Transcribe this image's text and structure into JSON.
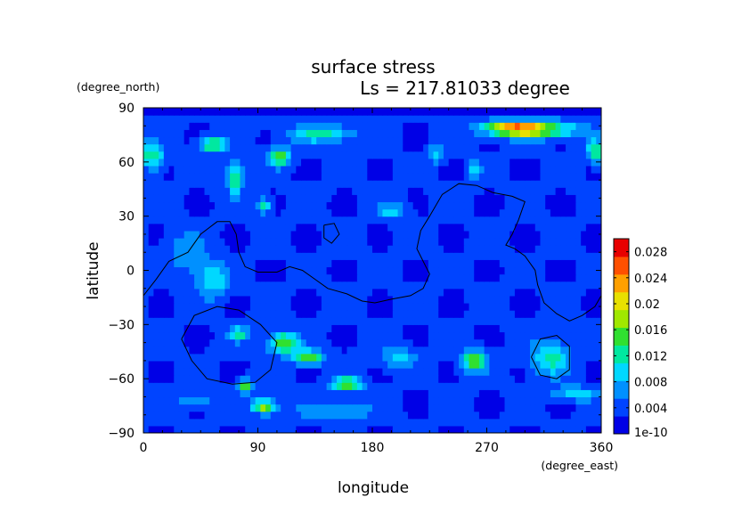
{
  "chart_data": {
    "type": "heatmap",
    "title": "surface stress",
    "subtitle": "Ls = 217.81033 degree",
    "xlabel": "longitude",
    "ylabel": "latitude",
    "x_units": "(degree_east)",
    "y_units": "(degree_north)",
    "xlim": [
      0,
      360
    ],
    "ylim": [
      -90,
      90
    ],
    "x_ticks": [
      "0",
      "90",
      "180",
      "270",
      "360"
    ],
    "y_ticks": [
      "90",
      "60",
      "30",
      "0",
      "−30",
      "−60",
      "−90"
    ],
    "colorbar": {
      "min": 0,
      "max": 0.03,
      "min_label": "1e-10",
      "tick_values": [
        0.004,
        0.008,
        0.012,
        0.016,
        0.02,
        0.024,
        0.028
      ],
      "tick_labels": [
        "0.004",
        "0.008",
        "0.012",
        "0.016",
        "0.02",
        "0.024",
        "0.028"
      ],
      "colors": [
        "#0000e6",
        "#0044ff",
        "#0090ff",
        "#00d8ff",
        "#00e8a0",
        "#30e030",
        "#a0e800",
        "#e8e000",
        "#ffa000",
        "#ff5000",
        "#e80000"
      ]
    },
    "field_background": 0.003,
    "hotspots": [
      {
        "lon": 290,
        "lat": 79,
        "value": 0.02,
        "rlon": 24,
        "rlat": 4
      },
      {
        "lon": 315,
        "lat": 78,
        "value": 0.014,
        "rlon": 30,
        "rlat": 5
      },
      {
        "lon": 55,
        "lat": 70,
        "value": 0.017,
        "rlon": 10,
        "rlat": 4
      },
      {
        "lon": 107,
        "lat": 63,
        "value": 0.017,
        "rlon": 8,
        "rlat": 5
      },
      {
        "lon": 140,
        "lat": 76,
        "value": 0.012,
        "rlon": 25,
        "rlat": 5
      },
      {
        "lon": 8,
        "lat": 63,
        "value": 0.013,
        "rlon": 8,
        "rlat": 7
      },
      {
        "lon": 355,
        "lat": 66,
        "value": 0.014,
        "rlon": 6,
        "rlat": 6
      },
      {
        "lon": 72,
        "lat": 52,
        "value": 0.014,
        "rlon": 6,
        "rlat": 10
      },
      {
        "lon": 95,
        "lat": 36,
        "value": 0.013,
        "rlon": 5,
        "rlat": 4
      },
      {
        "lon": 260,
        "lat": 55,
        "value": 0.011,
        "rlon": 5,
        "rlat": 5
      },
      {
        "lon": 230,
        "lat": 65,
        "value": 0.01,
        "rlon": 6,
        "rlat": 5
      },
      {
        "lon": 195,
        "lat": 33,
        "value": 0.009,
        "rlon": 12,
        "rlat": 5
      },
      {
        "lon": 55,
        "lat": -5,
        "value": 0.011,
        "rlon": 12,
        "rlat": 10
      },
      {
        "lon": 35,
        "lat": 10,
        "value": 0.008,
        "rlon": 15,
        "rlat": 12
      },
      {
        "lon": 110,
        "lat": -40,
        "value": 0.016,
        "rlon": 12,
        "rlat": 6
      },
      {
        "lon": 75,
        "lat": -35,
        "value": 0.012,
        "rlon": 8,
        "rlat": 4
      },
      {
        "lon": 130,
        "lat": -48,
        "value": 0.016,
        "rlon": 12,
        "rlat": 4
      },
      {
        "lon": 160,
        "lat": -63,
        "value": 0.017,
        "rlon": 12,
        "rlat": 4
      },
      {
        "lon": 80,
        "lat": -64,
        "value": 0.016,
        "rlon": 6,
        "rlat": 4
      },
      {
        "lon": 95,
        "lat": -75,
        "value": 0.018,
        "rlon": 9,
        "rlat": 4
      },
      {
        "lon": 260,
        "lat": -50,
        "value": 0.016,
        "rlon": 10,
        "rlat": 6
      },
      {
        "lon": 320,
        "lat": -48,
        "value": 0.012,
        "rlon": 15,
        "rlat": 10
      },
      {
        "lon": 200,
        "lat": -48,
        "value": 0.009,
        "rlon": 15,
        "rlat": 6
      },
      {
        "lon": 150,
        "lat": -78,
        "value": 0.009,
        "rlon": 30,
        "rlat": 4
      },
      {
        "lon": 340,
        "lat": -68,
        "value": 0.01,
        "rlon": 20,
        "rlat": 4
      },
      {
        "lon": 40,
        "lat": -72,
        "value": 0.008,
        "rlon": 15,
        "rlat": 4
      }
    ],
    "topography_contours": [
      {
        "name": "tharsis-boundary",
        "points": [
          [
            0,
            -14
          ],
          [
            10,
            -5
          ],
          [
            20,
            5
          ],
          [
            35,
            10
          ],
          [
            45,
            20
          ],
          [
            58,
            27
          ],
          [
            68,
            27
          ],
          [
            73,
            20
          ],
          [
            75,
            10
          ],
          [
            80,
            2
          ],
          [
            90,
            -1
          ],
          [
            105,
            -1
          ],
          [
            115,
            2
          ],
          [
            125,
            0
          ],
          [
            135,
            -5
          ],
          [
            145,
            -10
          ],
          [
            160,
            -13
          ],
          [
            172,
            -17
          ],
          [
            182,
            -18
          ],
          [
            195,
            -16
          ],
          [
            210,
            -14
          ],
          [
            220,
            -10
          ],
          [
            225,
            -2
          ],
          [
            220,
            5
          ],
          [
            215,
            12
          ],
          [
            218,
            22
          ],
          [
            225,
            30
          ],
          [
            235,
            42
          ],
          [
            248,
            48
          ],
          [
            262,
            47
          ],
          [
            275,
            43
          ],
          [
            290,
            41
          ],
          [
            300,
            38
          ],
          [
            295,
            28
          ],
          [
            290,
            20
          ],
          [
            285,
            14
          ],
          [
            292,
            12
          ],
          [
            300,
            8
          ],
          [
            308,
            0
          ],
          [
            310,
            -8
          ],
          [
            315,
            -18
          ],
          [
            325,
            -24
          ],
          [
            335,
            -28
          ],
          [
            345,
            -25
          ],
          [
            355,
            -20
          ],
          [
            360,
            -14
          ]
        ]
      },
      {
        "name": "small-ridge",
        "points": [
          [
            142,
            25
          ],
          [
            150,
            26
          ],
          [
            154,
            20
          ],
          [
            148,
            15
          ],
          [
            142,
            18
          ],
          [
            142,
            25
          ]
        ]
      },
      {
        "name": "argyre-basin",
        "points": [
          [
            30,
            -38
          ],
          [
            40,
            -25
          ],
          [
            58,
            -20
          ],
          [
            75,
            -22
          ],
          [
            92,
            -30
          ],
          [
            105,
            -40
          ],
          [
            100,
            -55
          ],
          [
            88,
            -62
          ],
          [
            70,
            -63
          ],
          [
            50,
            -60
          ],
          [
            38,
            -50
          ],
          [
            30,
            -38
          ]
        ]
      },
      {
        "name": "hellas-basin",
        "points": [
          [
            305,
            -48
          ],
          [
            312,
            -38
          ],
          [
            325,
            -36
          ],
          [
            335,
            -42
          ],
          [
            335,
            -55
          ],
          [
            325,
            -60
          ],
          [
            312,
            -58
          ],
          [
            305,
            -48
          ]
        ]
      }
    ]
  }
}
